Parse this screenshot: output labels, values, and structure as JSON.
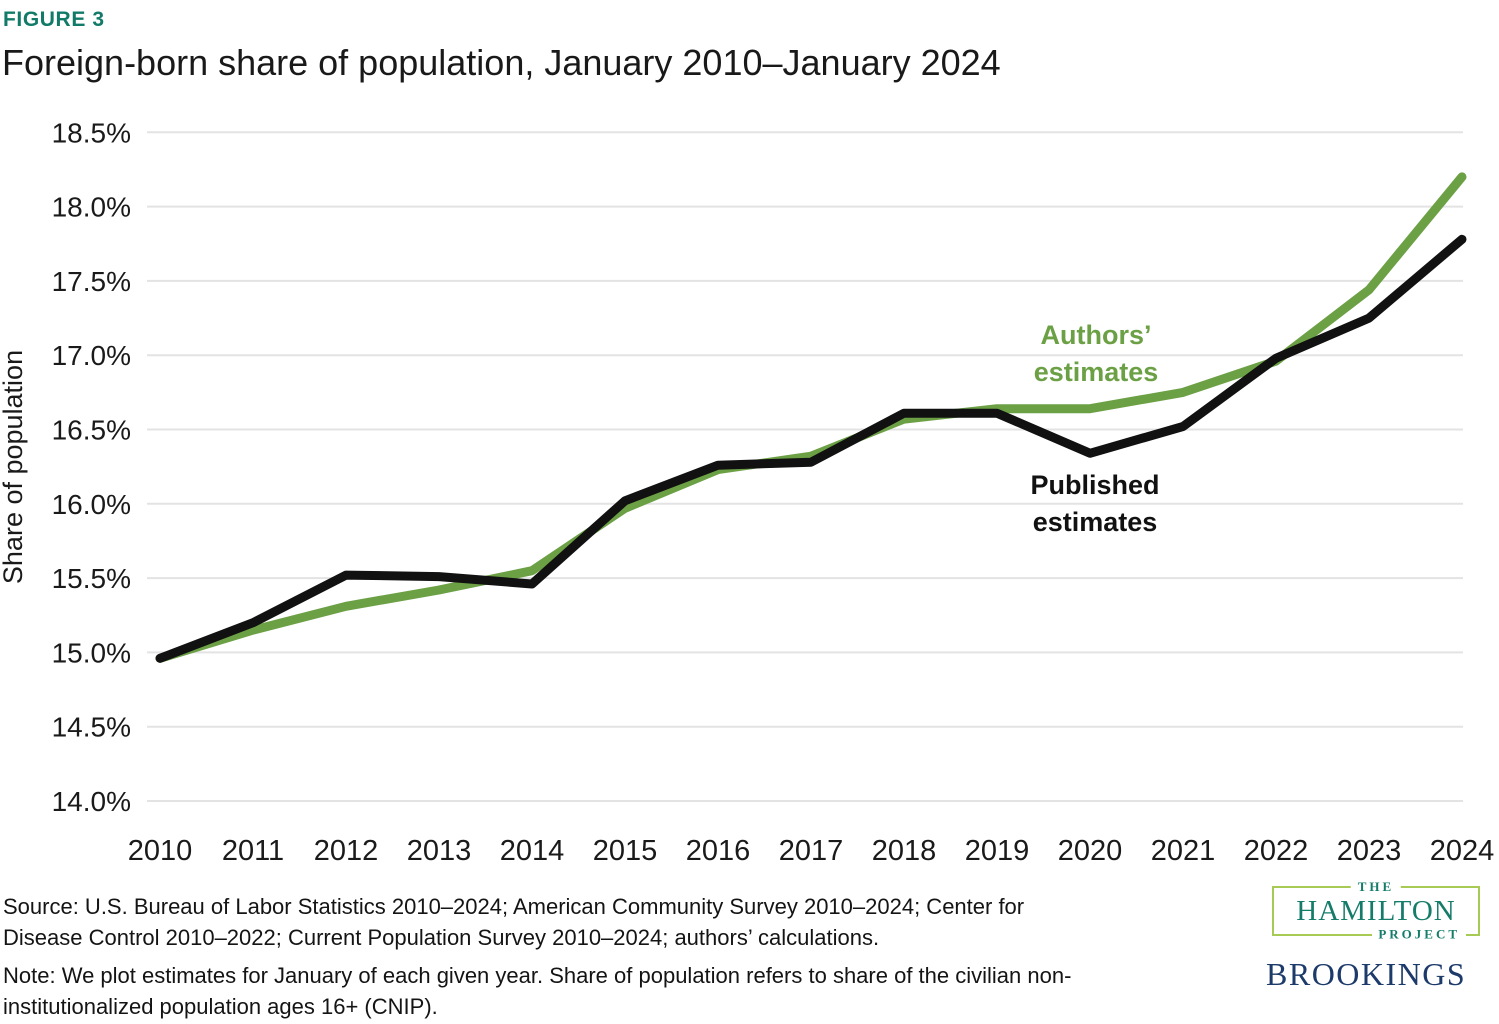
{
  "figure_label": "FIGURE 3",
  "title": "Foreign-born share of population, January 2010–January 2024",
  "chart_data": {
    "type": "line",
    "title": "Foreign-born share of population, January 2010–January 2024",
    "xlabel": "",
    "ylabel": "Share of population",
    "categories": [
      "2010",
      "2011",
      "2012",
      "2013",
      "2014",
      "2015",
      "2016",
      "2017",
      "2018",
      "2019",
      "2020",
      "2021",
      "2022",
      "2023",
      "2024"
    ],
    "ylim": [
      14.0,
      18.5
    ],
    "grid": true,
    "legend_position": "inline-annotations",
    "y_ticks": [
      {
        "value": 14.0,
        "label": "14.0%"
      },
      {
        "value": 14.5,
        "label": "14.5%"
      },
      {
        "value": 15.0,
        "label": "15.0%"
      },
      {
        "value": 15.5,
        "label": "15.5%"
      },
      {
        "value": 16.0,
        "label": "16.0%"
      },
      {
        "value": 16.5,
        "label": "16.5%"
      },
      {
        "value": 17.0,
        "label": "17.0%"
      },
      {
        "value": 17.5,
        "label": "17.5%"
      },
      {
        "value": 18.0,
        "label": "18.0%"
      },
      {
        "value": 18.5,
        "label": "18.5%"
      }
    ],
    "series": [
      {
        "name": "Authors’ estimates",
        "color": "#6ca045",
        "values": [
          14.96,
          15.15,
          15.31,
          15.42,
          15.55,
          15.97,
          16.23,
          16.32,
          16.57,
          16.64,
          16.64,
          16.75,
          16.96,
          17.44,
          18.2
        ]
      },
      {
        "name": "Published estimates",
        "color": "#111111",
        "values": [
          14.96,
          15.2,
          15.52,
          15.51,
          15.46,
          16.02,
          16.26,
          16.28,
          16.61,
          16.61,
          16.34,
          16.52,
          16.98,
          17.25,
          17.78
        ]
      }
    ],
    "annotations": [
      {
        "target": "authors-estimates-label",
        "text": "Authors’ estimates",
        "lines": [
          "Authors’",
          "estimates"
        ],
        "color": "#6ca045"
      },
      {
        "target": "published-estimates-label",
        "text": "Published estimates",
        "lines": [
          "Published",
          "estimates"
        ],
        "color": "#111111"
      }
    ],
    "grid_color": "#e3e3e3"
  },
  "footer": {
    "source_lines": [
      "Source: U.S. Bureau of Labor Statistics 2010–2024; American Community Survey 2010–2024; Center for",
      "Disease Control 2010–2022; Current Population Survey 2010–2024; authors’ calculations."
    ],
    "note_lines": [
      "Note: We plot estimates for January of each given year. Share of population refers to share of the civilian non-",
      "institutionalized population ages 16+ (CNIP)."
    ]
  },
  "logos": {
    "hamilton": {
      "the": "THE",
      "name": "HAMILTON",
      "project": "PROJECT",
      "teal": "#157c6a",
      "border_green": "#a7ca55"
    },
    "brookings": {
      "name": "BROOKINGS",
      "navy": "#1c3a6a"
    }
  }
}
